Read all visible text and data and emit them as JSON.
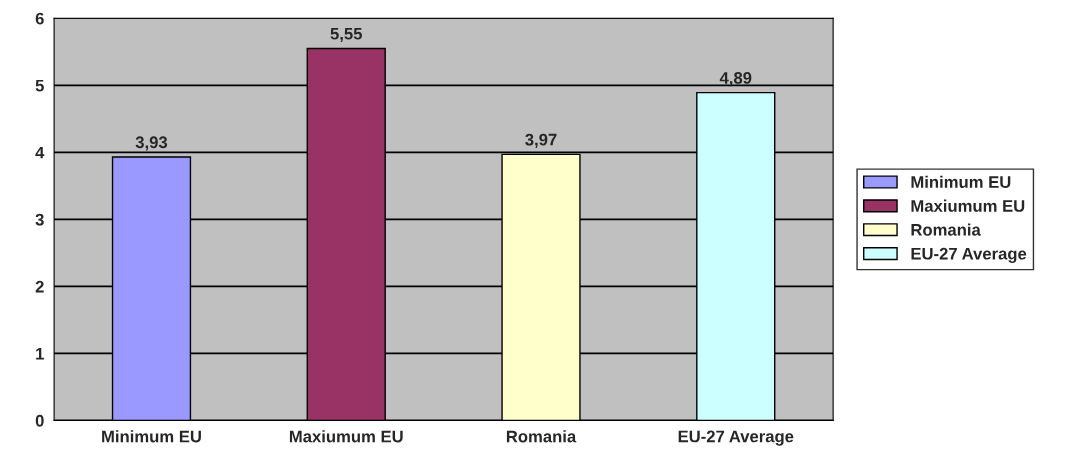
{
  "chart_data": {
    "type": "bar",
    "categories": [
      "Minimum EU",
      "Maxiumum EU",
      "Romania",
      "EU-27 Average"
    ],
    "series": [
      {
        "name": "Minimum EU",
        "color": "#9999ff",
        "values": [
          3.93,
          null,
          null,
          null
        ],
        "value_labels": [
          "3,93",
          null,
          null,
          null
        ]
      },
      {
        "name": "Maxiumum EU",
        "color": "#993366",
        "values": [
          null,
          5.55,
          null,
          null
        ],
        "value_labels": [
          null,
          "5,55",
          null,
          null
        ]
      },
      {
        "name": "Romania",
        "color": "#ffffcc",
        "values": [
          null,
          null,
          3.97,
          null
        ],
        "value_labels": [
          null,
          null,
          "3,97",
          null
        ]
      },
      {
        "name": "EU-27 Average",
        "color": "#ccffff",
        "values": [
          null,
          null,
          null,
          4.89
        ],
        "value_labels": [
          null,
          null,
          null,
          "4,89"
        ]
      }
    ],
    "ylim": [
      0,
      6
    ],
    "yticks": [
      0,
      1,
      2,
      3,
      4,
      5,
      6
    ],
    "grid": "y",
    "legend": "right"
  }
}
